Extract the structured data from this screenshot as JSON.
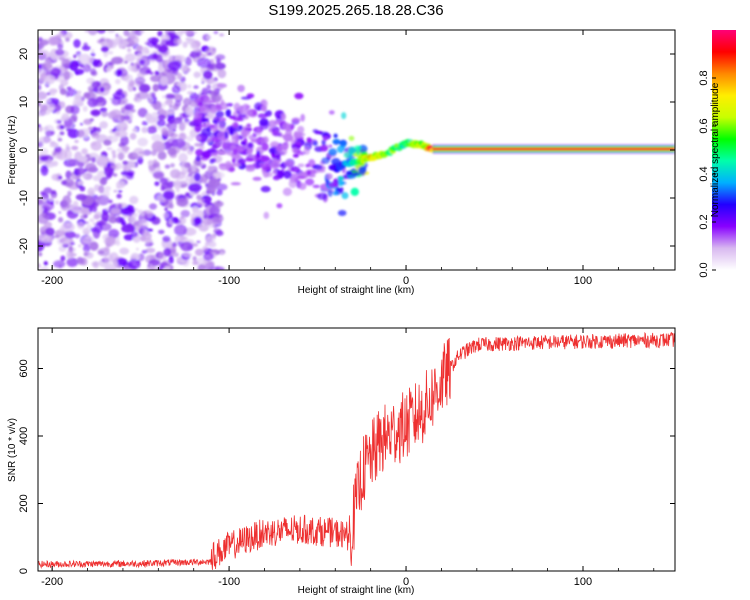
{
  "title": "S199.2025.265.18.28.C36",
  "chart_data": [
    {
      "type": "heatmap",
      "panel": "spectrogram",
      "xlabel": "Height of straight line (km)",
      "ylabel": "Frequency (Hz)",
      "xlim": [
        -208,
        152
      ],
      "ylim": [
        -25,
        25
      ],
      "xticks": [
        -200,
        -100,
        0,
        100
      ],
      "yticks": [
        -20,
        -10,
        0,
        10,
        20
      ],
      "colorbar": {
        "label": "Normalized spectral amplitude",
        "range": [
          0,
          1
        ],
        "ticks": [
          0.0,
          0.2,
          0.4,
          0.6,
          0.8
        ],
        "tick_labels": [
          "0.0",
          "0.2",
          "0.4",
          "0.6",
          "0.8"
        ],
        "colormap": [
          "#ffffff",
          "#d8b8f0",
          "#8800ff",
          "#2200ff",
          "#00b0ff",
          "#00ffaa",
          "#00ff00",
          "#c8ff00",
          "#ffee00",
          "#ff8800",
          "#ff0000",
          "#ff0077"
        ]
      },
      "ridge": {
        "description_points_km": [
          -110,
          -80,
          -60,
          -40,
          -35,
          -20,
          -10,
          0,
          10,
          15,
          152
        ],
        "frequency_hz": [
          3.5,
          2.0,
          -1.0,
          -4.0,
          -3.0,
          -1.5,
          -0.5,
          1.5,
          1.0,
          0.2,
          0.2
        ],
        "amplitude": [
          0.2,
          0.18,
          0.18,
          0.3,
          0.35,
          0.8,
          0.65,
          0.55,
          0.75,
          0.95,
          0.95
        ]
      },
      "noise_region_km": [
        -208,
        -110
      ]
    },
    {
      "type": "line",
      "panel": "snr",
      "xlabel": "Height of straight line (km)",
      "ylabel": "SNR (10 * v/v)",
      "xlim": [
        -208,
        152
      ],
      "ylim": [
        0,
        720
      ],
      "xticks": [
        -200,
        -100,
        0,
        100
      ],
      "yticks": [
        0,
        200,
        400,
        600
      ],
      "series": [
        {
          "name": "SNR",
          "color": "#ee3030",
          "x": [
            -208,
            -150,
            -110,
            -100,
            -80,
            -60,
            -40,
            -32,
            -25,
            -15,
            -5,
            0,
            10,
            20,
            30,
            40,
            60,
            100,
            152
          ],
          "y": [
            20,
            22,
            28,
            60,
            100,
            110,
            100,
            90,
            290,
            380,
            420,
            430,
            480,
            560,
            640,
            670,
            675,
            680,
            685
          ]
        }
      ]
    }
  ]
}
